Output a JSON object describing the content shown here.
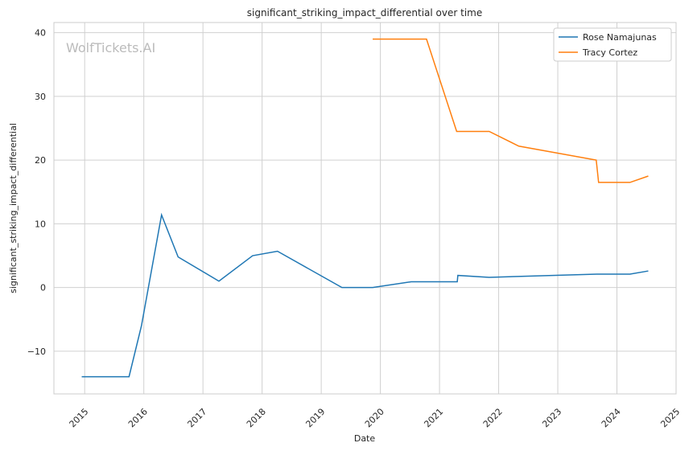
{
  "chart_data": {
    "type": "line",
    "title": "significant_striking_impact_differential over time",
    "xlabel": "Date",
    "ylabel": "significant_striking_impact_differential",
    "watermark": "WolfTickets.AI",
    "xlim": [
      2014.48,
      2025.0
    ],
    "ylim": [
      -16.7,
      41.6
    ],
    "xticks": [
      2015,
      2016,
      2017,
      2018,
      2019,
      2020,
      2021,
      2022,
      2023,
      2024,
      2025
    ],
    "xtick_labels": [
      "2015",
      "2016",
      "2017",
      "2018",
      "2019",
      "2020",
      "2021",
      "2022",
      "2023",
      "2024",
      "2025"
    ],
    "yticks": [
      -10,
      0,
      10,
      20,
      30,
      40
    ],
    "ytick_labels": [
      "−10",
      "0",
      "10",
      "20",
      "30",
      "40"
    ],
    "grid": true,
    "legend_position": "top-right",
    "series": [
      {
        "name": "Rose Namajunas",
        "color": "#1f77b4",
        "x": [
          2014.95,
          2015.75,
          2015.96,
          2016.3,
          2016.58,
          2017.27,
          2017.84,
          2018.26,
          2019.35,
          2019.87,
          2020.52,
          2021.3,
          2021.31,
          2021.84,
          2023.66,
          2024.22,
          2024.53
        ],
        "y": [
          -14,
          -14,
          -6,
          11.4,
          4.8,
          1.0,
          5.0,
          5.7,
          0,
          0,
          0.9,
          0.9,
          1.9,
          1.6,
          2.1,
          2.1,
          2.6
        ]
      },
      {
        "name": "Tracy Cortez",
        "color": "#ff7f0e",
        "x": [
          2019.87,
          2020.78,
          2021.29,
          2021.84,
          2022.34,
          2023.65,
          2023.69,
          2024.22,
          2024.53
        ],
        "y": [
          39,
          39,
          24.5,
          24.5,
          22.2,
          20,
          16.5,
          16.5,
          17.5
        ]
      }
    ]
  }
}
